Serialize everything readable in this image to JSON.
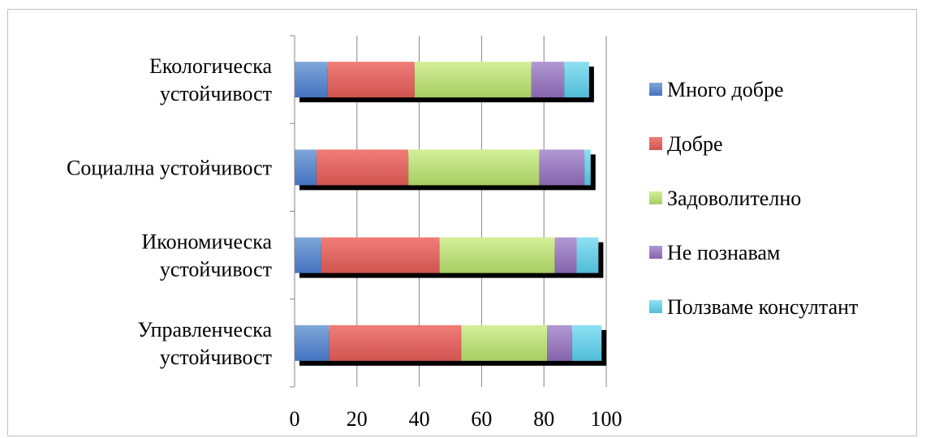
{
  "chart_data": {
    "type": "bar",
    "orientation": "horizontal",
    "stacked": true,
    "categories": [
      [
        "Управленческа",
        "устойчивост"
      ],
      [
        "Икономическа",
        "устойчивост"
      ],
      [
        "Социална устойчивост"
      ],
      [
        "Екологическа",
        "устойчивост"
      ]
    ],
    "series": [
      {
        "name": "Много добре",
        "color": "#4f81bd",
        "values": [
          11,
          8.5,
          7,
          10.5
        ]
      },
      {
        "name": "Добре",
        "color": "#c0504d",
        "values": [
          42.5,
          38,
          29.5,
          28
        ]
      },
      {
        "name": "Задоволително",
        "color": "#9bbb59",
        "values": [
          27.5,
          37,
          42,
          37.5
        ]
      },
      {
        "name": "Не познавам",
        "color": "#8064a2",
        "values": [
          8,
          7,
          14.5,
          10.5
        ]
      },
      {
        "name": "Ползваме консултант",
        "color": "#4bacc6",
        "values": [
          9.5,
          7,
          2,
          8
        ]
      }
    ],
    "xlim": [
      0,
      100
    ],
    "xticks": [
      0,
      20,
      40,
      60,
      80,
      100
    ],
    "grid": true,
    "legend": "right"
  }
}
